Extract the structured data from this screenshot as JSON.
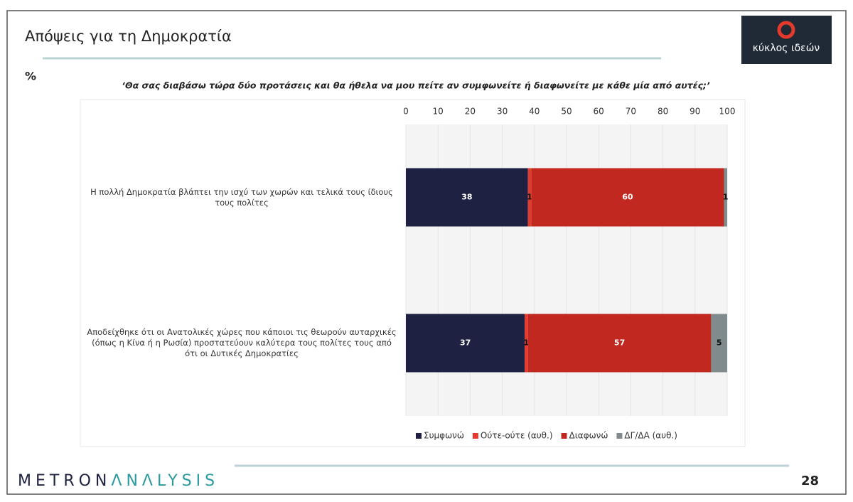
{
  "slide": {
    "title": "Απόψεις για τη Δημοκρατία",
    "unit": "%",
    "question": "‘Θα σας διαβάσω τώρα δύο προτάσεις και θα ήθελα να μου πείτε αν συμφωνείτε ή διαφωνείτε με κάθε μία από αυτές;’",
    "logo": "κύκλος ιδεών",
    "brand_first": "METRON",
    "brand_second": "ΛNΛLYSIS",
    "page": "28"
  },
  "chart_data": {
    "type": "stacked-barh",
    "categories": [
      "Η πολλή Δημοκρατία βλάπτει την ισχύ των χωρών και τελικά τους ίδιους τους πολίτες",
      "Αποδείχθηκε ότι οι Ανατολικές χώρες που κάποιοι τις θεωρούν αυταρχικές (όπως η Κίνα ή η Ρωσία) προστατεύουν καλύτερα τους πολίτες τους από ότι οι Δυτικές Δημοκρατίες"
    ],
    "series": [
      {
        "name": "Συμφωνώ",
        "color": "#1e2141",
        "values": [
          38,
          37
        ]
      },
      {
        "name": "Ούτε-ούτε (αυθ.)",
        "color": "#e5392b",
        "values": [
          1,
          1
        ]
      },
      {
        "name": "Διαφωνώ",
        "color": "#c1281f",
        "values": [
          60,
          57
        ]
      },
      {
        "name": "ΔΓ/ΔΑ (αυθ.)",
        "color": "#7f8b8c",
        "values": [
          1,
          5
        ]
      }
    ],
    "xlim": [
      0,
      100
    ],
    "xticks": [
      0,
      10,
      20,
      30,
      40,
      50,
      60,
      70,
      80,
      90,
      100
    ],
    "grid": true,
    "legend": "bottom"
  }
}
